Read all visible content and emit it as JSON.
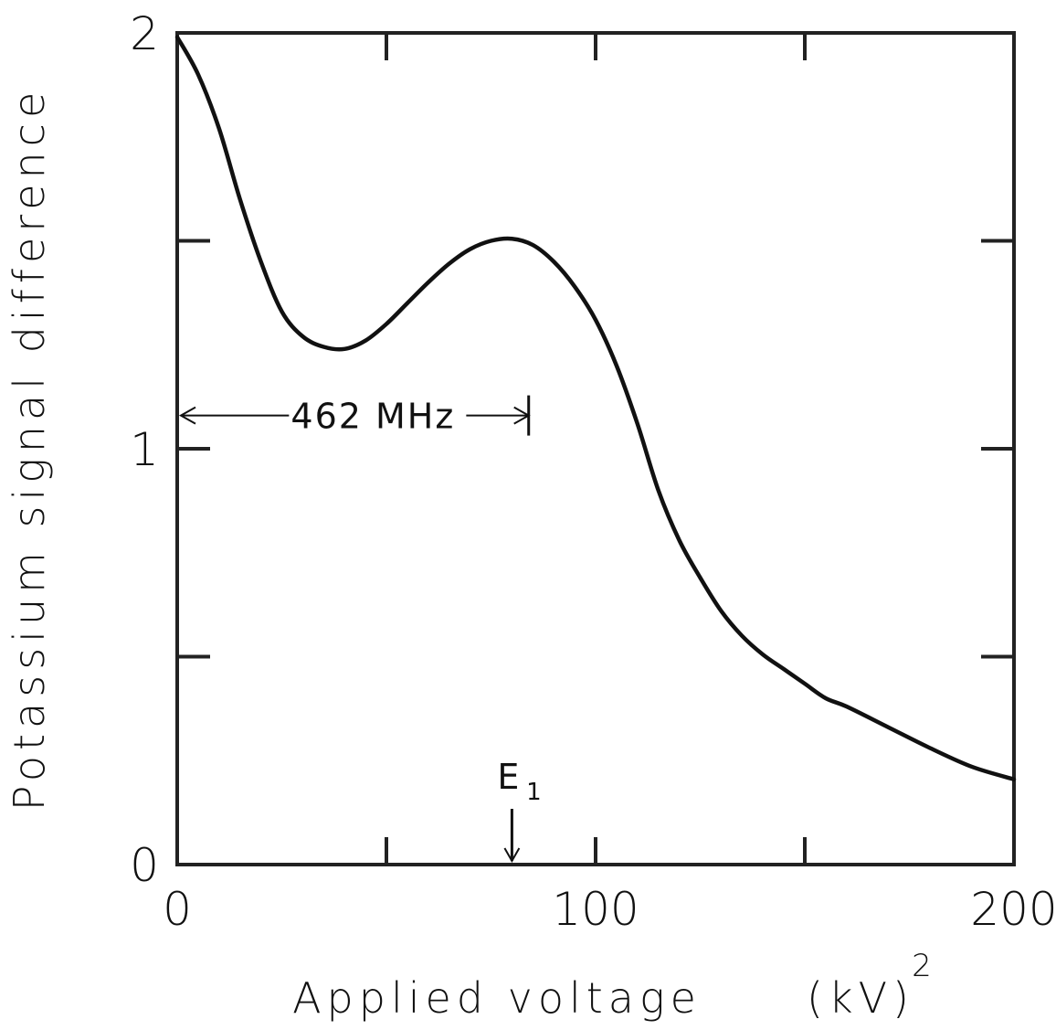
{
  "chart_data": {
    "type": "line",
    "xlabel": "Applied voltage",
    "xlabel_unit": "(kV)",
    "xlabel_exp": "2",
    "ylabel": "Potassium signal difference",
    "xlim": [
      0,
      200
    ],
    "ylim": [
      0,
      2
    ],
    "x_ticks": [
      0,
      50,
      100,
      150,
      200
    ],
    "x_tick_labels": [
      "0",
      "",
      "100",
      "",
      "200"
    ],
    "y_ticks": [
      0,
      0.5,
      1,
      1.5,
      2
    ],
    "y_tick_labels": [
      "0",
      "",
      "1",
      "",
      "2"
    ],
    "grid": false,
    "series": [
      {
        "x": [
          0,
          5,
          10,
          15,
          20,
          25,
          30,
          35,
          40,
          45,
          50,
          55,
          60,
          65,
          70,
          75,
          80,
          85,
          90,
          95,
          100,
          105,
          110,
          115,
          120,
          125,
          130,
          135,
          140,
          145,
          150,
          155,
          160,
          170,
          180,
          190,
          200
        ],
        "y": [
          1.99,
          1.9,
          1.77,
          1.6,
          1.45,
          1.33,
          1.27,
          1.245,
          1.24,
          1.26,
          1.3,
          1.35,
          1.4,
          1.445,
          1.48,
          1.5,
          1.505,
          1.49,
          1.45,
          1.39,
          1.31,
          1.2,
          1.06,
          0.9,
          0.78,
          0.69,
          0.61,
          0.55,
          0.505,
          0.47,
          0.435,
          0.4,
          0.38,
          0.33,
          0.28,
          0.235,
          0.205
        ]
      }
    ],
    "annotations": [
      {
        "text": "462 MHz",
        "type": "span",
        "x_from": 0,
        "x_to": 84,
        "y": 1.08
      },
      {
        "text": "E",
        "subscript": "1",
        "type": "arrow",
        "x": 80,
        "y_from": 0.2,
        "y_to": 0.0
      }
    ]
  },
  "colors": {
    "ink": "#111111",
    "frame": "#222222",
    "background": "#ffffff"
  }
}
